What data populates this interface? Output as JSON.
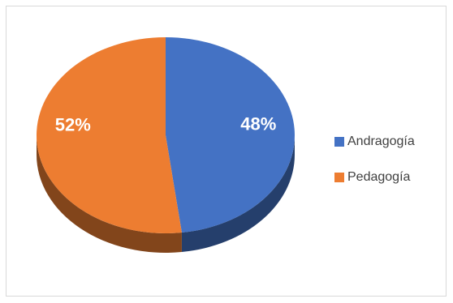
{
  "chart_data": {
    "type": "pie",
    "title": "",
    "style": "3d",
    "categories": [
      "Andragogía",
      "Pedagogía"
    ],
    "values": [
      48,
      52
    ],
    "data_labels": [
      "48%",
      "52%"
    ],
    "colors": [
      "#4472c4",
      "#ed7d31"
    ],
    "legend_position": "right"
  }
}
